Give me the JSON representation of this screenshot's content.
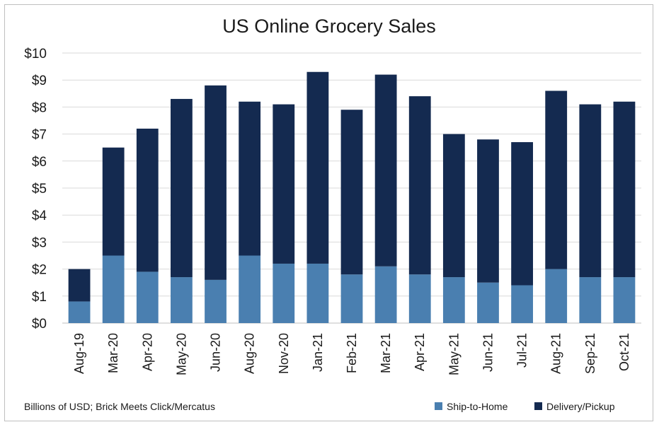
{
  "chart_data": {
    "type": "bar",
    "stacked": true,
    "title": "US Online Grocery Sales",
    "categories": [
      "Aug-19",
      "Mar-20",
      "Apr-20",
      "May-20",
      "Jun-20",
      "Aug-20",
      "Nov-20",
      "Jan-21",
      "Feb-21",
      "Mar-21",
      "Apr-21",
      "May-21",
      "Jun-21",
      "Jul-21",
      "Aug-21",
      "Sep-21",
      "Oct-21"
    ],
    "series": [
      {
        "name": "Ship-to-Home",
        "color": "#4a7fb0",
        "values": [
          0.8,
          2.5,
          1.9,
          1.7,
          1.6,
          2.5,
          2.2,
          2.2,
          1.8,
          2.1,
          1.8,
          1.7,
          1.5,
          1.4,
          2.0,
          1.7,
          1.7
        ]
      },
      {
        "name": "Delivery/Pickup",
        "color": "#142a50",
        "values": [
          1.2,
          4.0,
          5.3,
          6.6,
          7.2,
          5.7,
          5.9,
          7.1,
          6.1,
          7.1,
          6.6,
          5.3,
          5.3,
          5.3,
          6.6,
          6.4,
          6.5
        ]
      }
    ],
    "ylim": [
      0,
      10
    ],
    "yticks": [
      "$0",
      "$1",
      "$2",
      "$3",
      "$4",
      "$5",
      "$6",
      "$7",
      "$8",
      "$9",
      "$10"
    ],
    "grid": true,
    "legend_position": "bottom-right",
    "note": "Billions of USD; Brick Meets Click/Mercatus"
  }
}
